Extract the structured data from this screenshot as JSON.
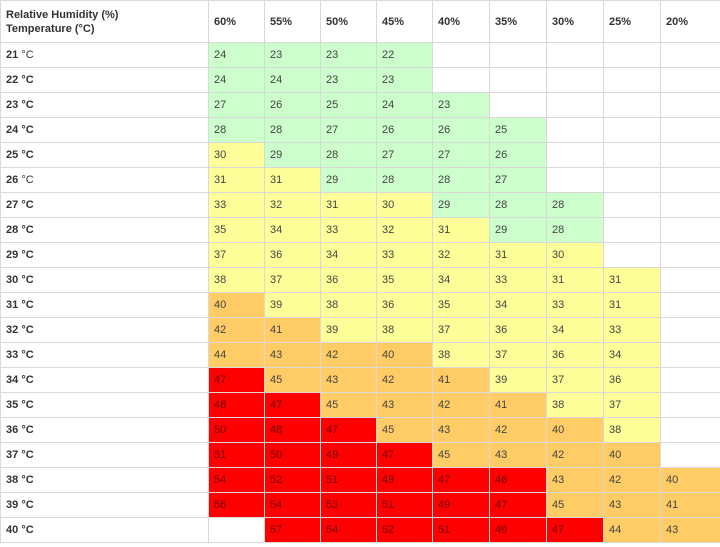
{
  "header": {
    "corner_line1": "Relative Humidity (%)",
    "corner_line2": "Temperature (°C)",
    "humidity_columns": [
      "60%",
      "55%",
      "50%",
      "45%",
      "40%",
      "35%",
      "30%",
      "25%",
      "20%"
    ]
  },
  "colors": {
    "green": "#ccffcc",
    "yellow": "#ffff99",
    "orange": "#ffcc66",
    "red": "#ff0000"
  },
  "rows": [
    {
      "temp": "21",
      "unit": "°C",
      "cells": [
        [
          "24",
          "green"
        ],
        [
          "23",
          "green"
        ],
        [
          "23",
          "green"
        ],
        [
          "22",
          "green"
        ],
        [
          "",
          ""
        ],
        [
          "",
          ""
        ],
        [
          "",
          ""
        ],
        [
          "",
          ""
        ],
        [
          "",
          ""
        ]
      ]
    },
    {
      "temp": "22",
      "unit": "°C",
      "cells": [
        [
          "24",
          "green"
        ],
        [
          "24",
          "green"
        ],
        [
          "23",
          "green"
        ],
        [
          "23",
          "green"
        ],
        [
          "",
          ""
        ],
        [
          "",
          ""
        ],
        [
          "",
          ""
        ],
        [
          "",
          ""
        ],
        [
          "",
          ""
        ]
      ]
    },
    {
      "temp": "23",
      "unit": "°C",
      "cells": [
        [
          "27",
          "green"
        ],
        [
          "26",
          "green"
        ],
        [
          "25",
          "green"
        ],
        [
          "24",
          "green"
        ],
        [
          "23",
          "green"
        ],
        [
          "",
          ""
        ],
        [
          "",
          ""
        ],
        [
          "",
          ""
        ],
        [
          "",
          ""
        ]
      ]
    },
    {
      "temp": "24",
      "unit": "°C",
      "cells": [
        [
          "28",
          "green"
        ],
        [
          "28",
          "green"
        ],
        [
          "27",
          "green"
        ],
        [
          "26",
          "green"
        ],
        [
          "26",
          "green"
        ],
        [
          "25",
          "green"
        ],
        [
          "",
          ""
        ],
        [
          "",
          ""
        ],
        [
          "",
          ""
        ]
      ]
    },
    {
      "temp": "25",
      "unit": "°C",
      "cells": [
        [
          "30",
          "yellow"
        ],
        [
          "29",
          "green"
        ],
        [
          "28",
          "green"
        ],
        [
          "27",
          "green"
        ],
        [
          "27",
          "green"
        ],
        [
          "26",
          "green"
        ],
        [
          "",
          ""
        ],
        [
          "",
          ""
        ],
        [
          "",
          ""
        ]
      ]
    },
    {
      "temp": "26",
      "unit": "°C",
      "cells": [
        [
          "31",
          "yellow"
        ],
        [
          "31",
          "yellow"
        ],
        [
          "29",
          "green"
        ],
        [
          "28",
          "green"
        ],
        [
          "28",
          "green"
        ],
        [
          "27",
          "green"
        ],
        [
          "",
          ""
        ],
        [
          "",
          ""
        ],
        [
          "",
          ""
        ]
      ]
    },
    {
      "temp": "27",
      "unit": "°C",
      "cells": [
        [
          "33",
          "yellow"
        ],
        [
          "32",
          "yellow"
        ],
        [
          "31",
          "yellow"
        ],
        [
          "30",
          "yellow"
        ],
        [
          "29",
          "green"
        ],
        [
          "28",
          "green"
        ],
        [
          "28",
          "green"
        ],
        [
          "",
          ""
        ],
        [
          "",
          ""
        ]
      ]
    },
    {
      "temp": "28",
      "unit": "°C",
      "cells": [
        [
          "35",
          "yellow"
        ],
        [
          "34",
          "yellow"
        ],
        [
          "33",
          "yellow"
        ],
        [
          "32",
          "yellow"
        ],
        [
          "31",
          "yellow"
        ],
        [
          "29",
          "green"
        ],
        [
          "28",
          "green"
        ],
        [
          "",
          ""
        ],
        [
          "",
          ""
        ]
      ]
    },
    {
      "temp": "29",
      "unit": "°C",
      "cells": [
        [
          "37",
          "yellow"
        ],
        [
          "36",
          "yellow"
        ],
        [
          "34",
          "yellow"
        ],
        [
          "33",
          "yellow"
        ],
        [
          "32",
          "yellow"
        ],
        [
          "31",
          "yellow"
        ],
        [
          "30",
          "yellow"
        ],
        [
          "",
          ""
        ],
        [
          "",
          ""
        ]
      ]
    },
    {
      "temp": "30",
      "unit": "°C",
      "cells": [
        [
          "38",
          "yellow"
        ],
        [
          "37",
          "yellow"
        ],
        [
          "36",
          "yellow"
        ],
        [
          "35",
          "yellow"
        ],
        [
          "34",
          "yellow"
        ],
        [
          "33",
          "yellow"
        ],
        [
          "31",
          "yellow"
        ],
        [
          "31",
          "yellow"
        ],
        [
          "",
          ""
        ]
      ]
    },
    {
      "temp": "31",
      "unit": "°C",
      "cells": [
        [
          "40",
          "orange"
        ],
        [
          "39",
          "yellow"
        ],
        [
          "38",
          "yellow"
        ],
        [
          "36",
          "yellow"
        ],
        [
          "35",
          "yellow"
        ],
        [
          "34",
          "yellow"
        ],
        [
          "33",
          "yellow"
        ],
        [
          "31",
          "yellow"
        ],
        [
          "",
          ""
        ]
      ]
    },
    {
      "temp": "32",
      "unit": "°C",
      "cells": [
        [
          "42",
          "orange"
        ],
        [
          "41",
          "orange"
        ],
        [
          "39",
          "yellow"
        ],
        [
          "38",
          "yellow"
        ],
        [
          "37",
          "yellow"
        ],
        [
          "36",
          "yellow"
        ],
        [
          "34",
          "yellow"
        ],
        [
          "33",
          "yellow"
        ],
        [
          "",
          ""
        ]
      ]
    },
    {
      "temp": "33",
      "unit": "°C",
      "cells": [
        [
          "44",
          "orange"
        ],
        [
          "43",
          "orange"
        ],
        [
          "42",
          "orange"
        ],
        [
          "40",
          "orange"
        ],
        [
          "38",
          "yellow"
        ],
        [
          "37",
          "yellow"
        ],
        [
          "36",
          "yellow"
        ],
        [
          "34",
          "yellow"
        ],
        [
          "",
          ""
        ]
      ]
    },
    {
      "temp": "34",
      "unit": "°C",
      "cells": [
        [
          "47",
          "red"
        ],
        [
          "45",
          "orange"
        ],
        [
          "43",
          "orange"
        ],
        [
          "42",
          "orange"
        ],
        [
          "41",
          "orange"
        ],
        [
          "39",
          "yellow"
        ],
        [
          "37",
          "yellow"
        ],
        [
          "36",
          "yellow"
        ],
        [
          "",
          ""
        ]
      ]
    },
    {
      "temp": "35",
      "unit": "°C",
      "cells": [
        [
          "48",
          "red"
        ],
        [
          "47",
          "red"
        ],
        [
          "45",
          "orange"
        ],
        [
          "43",
          "orange"
        ],
        [
          "42",
          "orange"
        ],
        [
          "41",
          "orange"
        ],
        [
          "38",
          "yellow"
        ],
        [
          "37",
          "yellow"
        ],
        [
          "",
          ""
        ]
      ]
    },
    {
      "temp": "36",
      "unit": "°C",
      "cells": [
        [
          "50",
          "red"
        ],
        [
          "48",
          "red"
        ],
        [
          "47",
          "red"
        ],
        [
          "45",
          "orange"
        ],
        [
          "43",
          "orange"
        ],
        [
          "42",
          "orange"
        ],
        [
          "40",
          "orange"
        ],
        [
          "38",
          "yellow"
        ],
        [
          "",
          ""
        ]
      ]
    },
    {
      "temp": "37",
      "unit": "°C",
      "cells": [
        [
          "51",
          "red"
        ],
        [
          "50",
          "red"
        ],
        [
          "49",
          "red"
        ],
        [
          "47",
          "red"
        ],
        [
          "45",
          "orange"
        ],
        [
          "43",
          "orange"
        ],
        [
          "42",
          "orange"
        ],
        [
          "40",
          "orange"
        ],
        [
          "",
          ""
        ]
      ]
    },
    {
      "temp": "38",
      "unit": "°C",
      "cells": [
        [
          "54",
          "red"
        ],
        [
          "52",
          "red"
        ],
        [
          "51",
          "red"
        ],
        [
          "49",
          "red"
        ],
        [
          "47",
          "red"
        ],
        [
          "46",
          "red"
        ],
        [
          "43",
          "orange"
        ],
        [
          "42",
          "orange"
        ],
        [
          "40",
          "orange"
        ]
      ]
    },
    {
      "temp": "39",
      "unit": "°C",
      "cells": [
        [
          "56",
          "red"
        ],
        [
          "54",
          "red"
        ],
        [
          "53",
          "red"
        ],
        [
          "51",
          "red"
        ],
        [
          "49",
          "red"
        ],
        [
          "47",
          "red"
        ],
        [
          "45",
          "orange"
        ],
        [
          "43",
          "orange"
        ],
        [
          "41",
          "orange"
        ]
      ]
    },
    {
      "temp": "40",
      "unit": "°C",
      "cells": [
        [
          "",
          ""
        ],
        [
          "57",
          "red"
        ],
        [
          "54",
          "red"
        ],
        [
          "52",
          "red"
        ],
        [
          "51",
          "red"
        ],
        [
          "49",
          "red"
        ],
        [
          "47",
          "red"
        ],
        [
          "44",
          "orange"
        ],
        [
          "43",
          "orange"
        ]
      ]
    }
  ]
}
